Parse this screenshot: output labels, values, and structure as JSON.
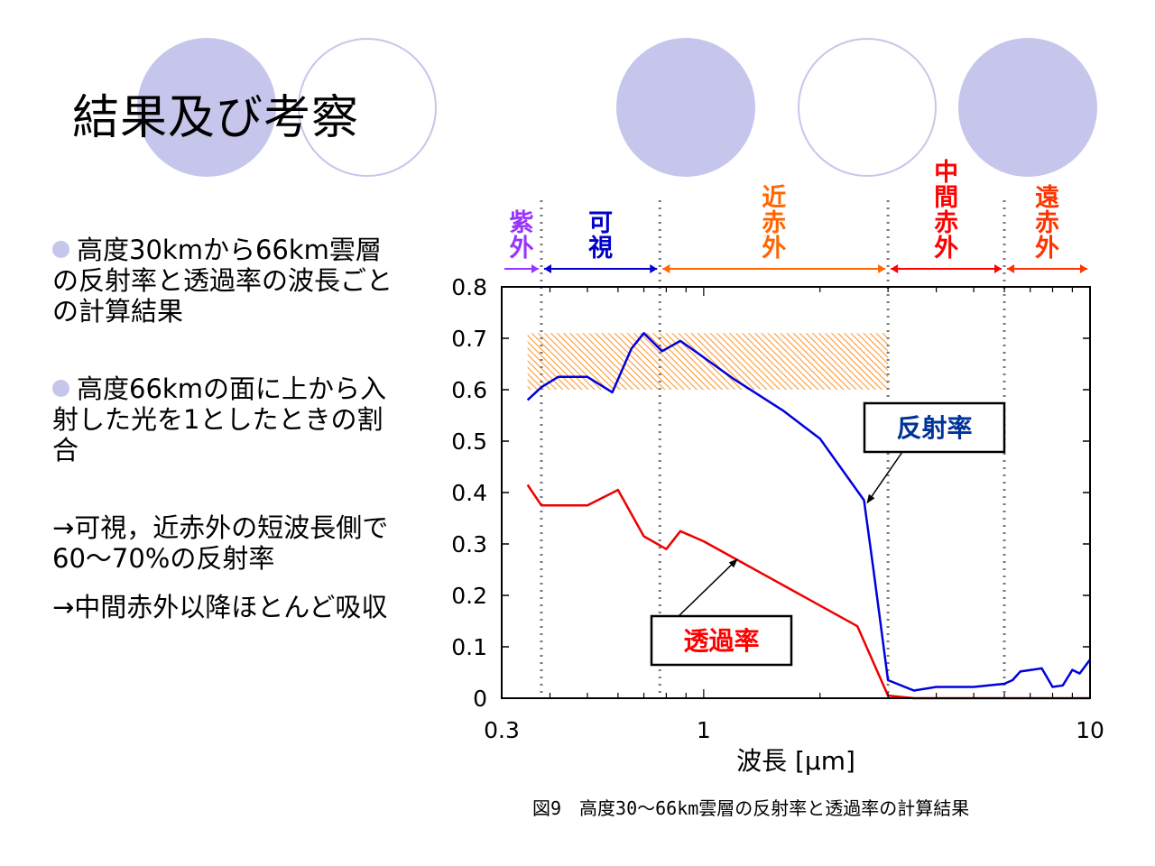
{
  "slide": {
    "title": "結果及び考察",
    "bullets": [
      "高度30kmから66km雲層の反射率と透過率の波長ごとの計算結果",
      "高度66kmの面に上から入射した光を1としたときの割合"
    ],
    "notes": [
      "→可視，近赤外の短波長側で60〜70%の反射率",
      "→中間赤外以降ほとんど吸収"
    ],
    "caption": "図9　高度30〜66km雲層の反射率と透過率の計算結果",
    "colors": {
      "accent_circle": "#c6c6ec"
    }
  },
  "chart_data": {
    "type": "line",
    "xlabel": "波長 [μm]",
    "ylabel": "",
    "xscale": "log",
    "xlim": [
      0.3,
      10
    ],
    "ylim": [
      0,
      0.8
    ],
    "xticks": [
      0.3,
      1,
      10
    ],
    "xtick_labels": [
      "0.3",
      "1",
      "10"
    ],
    "yticks": [
      0,
      0.1,
      0.2,
      0.3,
      0.4,
      0.5,
      0.6,
      0.7,
      0.8
    ],
    "ytick_labels": [
      "0",
      "0.1",
      "0.2",
      "0.3",
      "0.4",
      "0.5",
      "0.6",
      "0.7",
      "0.8"
    ],
    "series": [
      {
        "name": "反射率",
        "color": "#0000dd",
        "x": [
          0.35,
          0.38,
          0.42,
          0.5,
          0.58,
          0.65,
          0.7,
          0.78,
          0.87,
          0.97,
          1.2,
          1.6,
          2.0,
          2.6,
          2.75,
          3.0,
          3.5,
          4.0,
          5.0,
          6.0,
          6.3,
          6.6,
          7.5,
          8.0,
          8.5,
          9.0,
          9.4,
          10.0
        ],
        "y": [
          0.58,
          0.605,
          0.625,
          0.625,
          0.595,
          0.68,
          0.71,
          0.675,
          0.695,
          0.67,
          0.62,
          0.56,
          0.505,
          0.385,
          0.25,
          0.035,
          0.015,
          0.022,
          0.022,
          0.028,
          0.035,
          0.052,
          0.058,
          0.022,
          0.025,
          0.055,
          0.048,
          0.075
        ]
      },
      {
        "name": "透過率",
        "color": "#ee0000",
        "x": [
          0.35,
          0.38,
          0.5,
          0.6,
          0.7,
          0.8,
          0.87,
          1.0,
          2.5,
          3.0,
          3.5,
          10.0
        ],
        "y": [
          0.415,
          0.375,
          0.375,
          0.405,
          0.315,
          0.29,
          0.325,
          0.305,
          0.14,
          0.005,
          0.0,
          0.0
        ]
      }
    ],
    "bands": [
      {
        "label": "紫外",
        "color": "#9933ff",
        "from": 0.3,
        "to": 0.38
      },
      {
        "label": "可視",
        "color": "#0000cc",
        "from": 0.38,
        "to": 0.77
      },
      {
        "label": "近赤外",
        "color": "#ff6600",
        "from": 0.77,
        "to": 3.0
      },
      {
        "label": "中間赤外",
        "color": "#ff0000",
        "from": 3.0,
        "to": 6.0
      },
      {
        "label": "遠赤外",
        "color": "#ff3300",
        "from": 6.0,
        "to": 10.0
      }
    ],
    "highlight": {
      "x_from": 0.35,
      "x_to": 3.0,
      "y_from": 0.6,
      "y_to": 0.71,
      "color": "#ff9933"
    },
    "annotations": [
      {
        "text": "反射率",
        "color": "#003399",
        "points_to": [
          2.65,
          0.38
        ]
      },
      {
        "text": "透過率",
        "color": "#ff0000",
        "points_to": [
          1.22,
          0.27
        ]
      }
    ]
  }
}
